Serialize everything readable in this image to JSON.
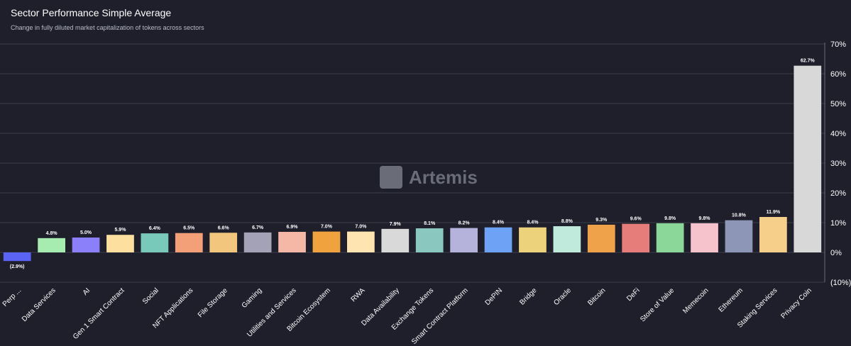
{
  "title": "Sector Performance Simple Average",
  "subtitle": "Change in fully diluted market capitalization of tokens across sectors",
  "watermark": "Artemis",
  "chart_data": {
    "type": "bar",
    "title": "Sector Performance Simple Average",
    "subtitle": "Change in fully diluted market capitalization of tokens across sectors",
    "xlabel": "",
    "ylabel": "",
    "ylim": [
      -10,
      70
    ],
    "yticks": [
      -10,
      0,
      10,
      20,
      30,
      40,
      50,
      60,
      70
    ],
    "ytick_labels": [
      "(10%)",
      "0%",
      "10%",
      "20%",
      "30%",
      "40%",
      "50%",
      "60%",
      "70%"
    ],
    "grid": true,
    "categories": [
      "Perp ...",
      "Data Services",
      "AI",
      "Gen 1 Smart Contract",
      "Social",
      "NFT Applications",
      "File Storage",
      "Gaming",
      "Utilities and Services",
      "Bitcoin Ecosystem",
      "RWA",
      "Data Availability",
      "Exchange Tokens",
      "Smart Contract Platform",
      "DePIN",
      "Bridge",
      "Oracle",
      "Bitcoin",
      "DeFi",
      "Store of Value",
      "Memecoin",
      "Ethereum",
      "Staking Services",
      "Privacy Coin"
    ],
    "values": [
      -2.9,
      4.8,
      5.0,
      5.9,
      6.4,
      6.5,
      6.6,
      6.7,
      6.9,
      7.0,
      7.0,
      7.9,
      8.1,
      8.2,
      8.4,
      8.4,
      8.8,
      9.3,
      9.6,
      9.8,
      9.8,
      10.8,
      11.9,
      62.7
    ],
    "value_labels": [
      "(2.9%)",
      "4.8%",
      "5.0%",
      "5.9%",
      "6.4%",
      "6.5%",
      "6.6%",
      "6.7%",
      "6.9%",
      "7.0%",
      "7.0%",
      "7.9%",
      "8.1%",
      "8.2%",
      "8.4%",
      "8.4%",
      "8.8%",
      "9.3%",
      "9.6%",
      "9.8%",
      "9.8%",
      "10.8%",
      "11.9%",
      "62.7%"
    ],
    "colors": [
      "#5b63f5",
      "#a6ecb0",
      "#8b80f9",
      "#fde0a0",
      "#79c9ba",
      "#f3a078",
      "#f2c67d",
      "#a3a2b6",
      "#f6b8a6",
      "#f0a23e",
      "#fde4b0",
      "#d9d9d9",
      "#8ac8bf",
      "#b5b2dc",
      "#6ea2f5",
      "#ecd27a",
      "#bfeadc",
      "#f0a24a",
      "#e67d7a",
      "#8bd79a",
      "#f6c2cc",
      "#8e96b8",
      "#f6d08a",
      "#d8d8d8"
    ]
  }
}
